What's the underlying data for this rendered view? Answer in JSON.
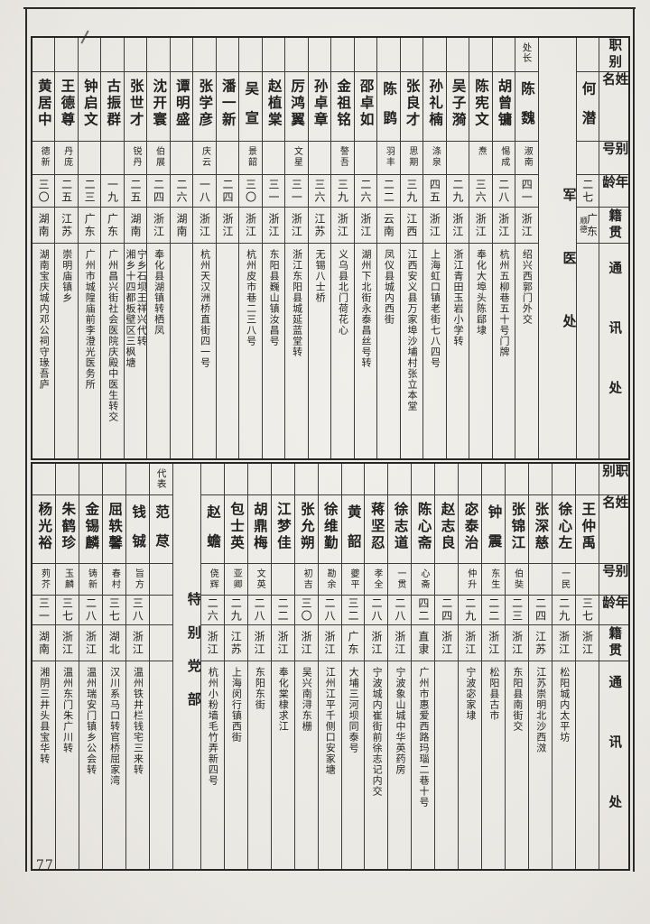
{
  "page": {
    "number": "77"
  },
  "colors": {
    "ink": "#1f1f1f",
    "paper": "#ecebe7",
    "rule": "#3c3c3c"
  },
  "header_labels": [
    "职别",
    "姓名",
    "别号",
    "年龄",
    "籍贯",
    "通讯处"
  ],
  "tables": [
    {
      "id": "top",
      "group_label": "军医处",
      "columns": [
        {
          "type": "header"
        },
        {
          "type": "person",
          "name": "何潜",
          "age": "二七",
          "province": "广东",
          "province_note": "顺德",
          "address": ""
        },
        {
          "type": "group"
        },
        {
          "type": "person",
          "role": "处长",
          "name": "陈魏",
          "alias": "淑南",
          "age": "四一",
          "province": "浙江",
          "address": "绍兴西郭门外交"
        },
        {
          "type": "person",
          "name": "胡曾镛",
          "alias": "惕成",
          "age": "二八",
          "province": "浙江",
          "address": "杭州五柳巷五十号门牌"
        },
        {
          "type": "person",
          "name": "陈宪文",
          "alias": "焘",
          "age": "三六",
          "province": "浙江",
          "address": "奉化大埠头陈郈埭"
        },
        {
          "type": "person",
          "name": "吴子漪",
          "age": "二九",
          "province": "浙江",
          "address": "浙江青田玉岩小学转"
        },
        {
          "type": "person",
          "name": "孙礼楠",
          "alias": "涤泉",
          "age": "四五",
          "province": "浙江",
          "address": "上海虹口镇老街七八四号"
        },
        {
          "type": "person",
          "name": "张良才",
          "alias": "思期",
          "age": "三九",
          "province": "江西",
          "address": "江西安义县万家埠沙埔村张立本堂"
        },
        {
          "type": "person",
          "name": "陈鹍",
          "alias": "羽丰",
          "age": "二二",
          "province": "云南",
          "address": "凤仪县城内西街"
        },
        {
          "type": "person",
          "name": "邵卓如",
          "age": "二六",
          "province": "浙江",
          "address": "湖州下北街永泰昌丝号转"
        },
        {
          "type": "person",
          "name": "金祖铭",
          "alias": "謷吾",
          "age": "三九",
          "province": "浙江",
          "address": "义乌县北门荷花心"
        },
        {
          "type": "person",
          "name": "孙卓章",
          "age": "三六",
          "province": "江苏",
          "address": "无锡八士桥"
        },
        {
          "type": "person",
          "name": "厉鸿翼",
          "alias": "文星",
          "age": "三一",
          "province": "浙江",
          "address": "浙江东阳县城延蓝堂转"
        },
        {
          "type": "person",
          "name": "赵植棠",
          "age": "三一",
          "province": "浙江",
          "address": "东阳县巍山镇汝昌号"
        },
        {
          "type": "person",
          "name": "吴宣",
          "alias": "景韶",
          "age": "三〇",
          "province": "浙江",
          "address": "杭州皮市巷二三八号"
        },
        {
          "type": "person",
          "name": "潘一新",
          "age": "二四",
          "province": "浙江",
          "address": ""
        },
        {
          "type": "person",
          "name": "张学彦",
          "alias": "庆云",
          "age": "一八",
          "province": "浙江",
          "address": "杭州天汉洲桥直街四一号"
        },
        {
          "type": "person",
          "name": "谭明盛",
          "age": "二六",
          "province": "湖南",
          "address": ""
        },
        {
          "type": "person",
          "name": "沈开寰",
          "alias": "伯展",
          "age": "二四",
          "province": "浙江",
          "address": "奉化县湖镇转栖凤"
        },
        {
          "type": "person",
          "name": "张世才",
          "alias": "锐丹",
          "age": "二五",
          "province": "湖南",
          "address": "宁乡石坝王祥兴代转\n湘乡十四都板壁区三枫塘"
        },
        {
          "type": "person",
          "name": "古振群",
          "age": "一九",
          "province": "广东",
          "address": "广州昌兴街社会医院庆殿中医生转交"
        },
        {
          "type": "person",
          "name": "钟启文",
          "age": "二三",
          "province": "广东",
          "address": "广州市城隍庙前李澄光医务所"
        },
        {
          "type": "person",
          "name": "王德尊",
          "alias": "丹庞",
          "age": "二五",
          "province": "江苏",
          "address": "崇明庙镇乡"
        },
        {
          "type": "person",
          "name": "黄居中",
          "alias": "德新",
          "age": "三〇",
          "province": "湖南",
          "address": "湖南宝庆城内邓公祠守瑑吾庐"
        }
      ]
    },
    {
      "id": "bottom",
      "group_label": "特别党部",
      "columns": [
        {
          "type": "header"
        },
        {
          "type": "person",
          "name": "王仲禹",
          "age": "三七",
          "province": "浙江",
          "address": ""
        },
        {
          "type": "person",
          "name": "徐心左",
          "alias": "一民",
          "age": "二九",
          "province": "浙江",
          "address": "松阳城内太平坊"
        },
        {
          "type": "person",
          "name": "张深慈",
          "age": "二四",
          "province": "江苏",
          "address": "江苏崇明北沙西滧"
        },
        {
          "type": "person",
          "name": "张锦江",
          "alias": "伯奘",
          "age": "二三",
          "province": "浙江",
          "address": "东阳县南街交"
        },
        {
          "type": "person",
          "name": "钟震",
          "alias": "东生",
          "age": "二二",
          "province": "浙江",
          "address": "松阳县古市"
        },
        {
          "type": "person",
          "name": "宓泰治",
          "alias": "仲升",
          "age": "二九",
          "province": "浙江",
          "address": "宁波宓家埭"
        },
        {
          "type": "person",
          "name": "赵志良",
          "age": "二四",
          "province": "浙江",
          "address": ""
        },
        {
          "type": "person",
          "name": "陈心斋",
          "alias": "心斋",
          "age": "四二",
          "province": "直隶",
          "address": "广州市惠爱西路玛瑙二巷十号"
        },
        {
          "type": "person",
          "name": "徐志道",
          "alias": "一贯",
          "age": "二八",
          "province": "浙江",
          "address": "宁波象山城中华英药房"
        },
        {
          "type": "person",
          "name": "蒋坚忍",
          "alias": "孝全",
          "age": "二八",
          "province": "浙江",
          "address": "宁波城内崔街前徐志记内交"
        },
        {
          "type": "person",
          "name": "黄韶",
          "alias": "夔平",
          "age": "三二",
          "province": "广东",
          "address": "大埔三河坝同泰号"
        },
        {
          "type": "person",
          "name": "徐维勤",
          "alias": "勘余",
          "age": "二八",
          "province": "浙江",
          "address": "江州江平千侧口安家塘"
        },
        {
          "type": "person",
          "name": "张允朔",
          "alias": "初吉",
          "age": "三〇",
          "province": "浙江",
          "address": "吴兴南浔东栅"
        },
        {
          "type": "person",
          "name": "江梦佳",
          "age": "二二",
          "province": "浙江",
          "address": "奉化棠棣求江"
        },
        {
          "type": "person",
          "name": "胡鼎梅",
          "alias": "文英",
          "age": "二八",
          "province": "浙江",
          "address": "东阳东街"
        },
        {
          "type": "person",
          "name": "包士英",
          "alias": "亚卿",
          "age": "二九",
          "province": "江苏",
          "address": "上海闵行镇西街"
        },
        {
          "type": "person",
          "name": "赵蟾",
          "alias": "侥辉",
          "age": "二六",
          "province": "浙江",
          "address": "杭州小粉墙毛竹弄新四号"
        },
        {
          "type": "group"
        },
        {
          "type": "person",
          "role": "代表",
          "name": "范荩",
          "address": ""
        },
        {
          "type": "person",
          "name": "钱铖",
          "alias": "旨方",
          "age": "三八",
          "province": "浙江",
          "address": "温州铁井栏钱宅三来转"
        },
        {
          "type": "person",
          "name": "屈轶馨",
          "alias": "春村",
          "age": "三七",
          "province": "湖北",
          "address": "汉川系马口转官桥屈家湾"
        },
        {
          "type": "person",
          "name": "金锡麟",
          "alias": "铸新",
          "age": "二八",
          "province": "浙江",
          "address": "温州瑞安门镇乡公会转"
        },
        {
          "type": "person",
          "name": "朱鹤珍",
          "alias": "玉麟",
          "age": "三七",
          "province": "浙江",
          "address": "温州东门朱广川转"
        },
        {
          "type": "person",
          "name": "杨光裕",
          "alias": "茢芥",
          "age": "三一",
          "province": "湖南",
          "address": "湘阴三井头县宝华转"
        }
      ]
    }
  ]
}
